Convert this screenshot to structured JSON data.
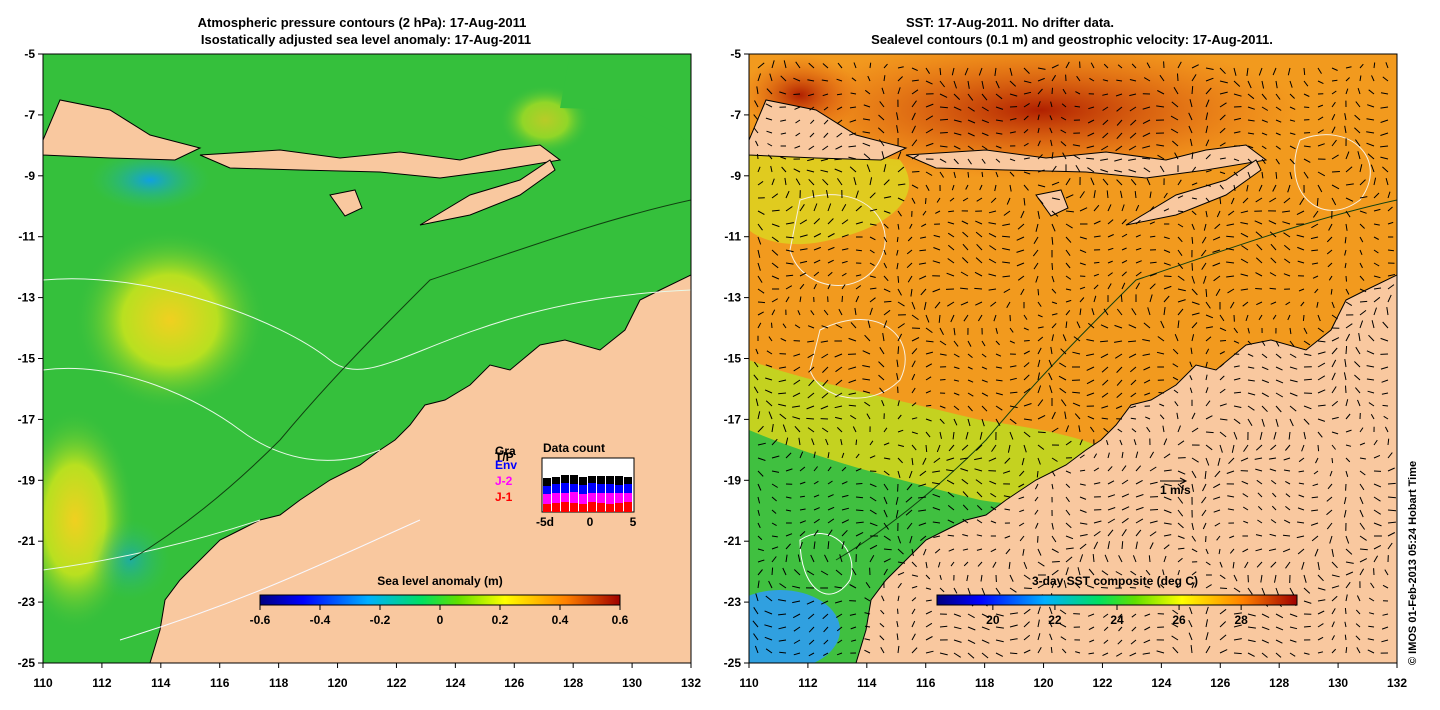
{
  "left_panel": {
    "title_line1": "Atmospheric pressure contours (2 hPa): 17-Aug-2011",
    "title_line2": "Isostatically adjusted sea level anomaly: 17-Aug-2011",
    "x_ticks": [
      "110",
      "112",
      "114",
      "116",
      "118",
      "120",
      "122",
      "124",
      "126",
      "128",
      "130",
      "132"
    ],
    "y_ticks": [
      "-5",
      "-7",
      "-9",
      "-11",
      "-13",
      "-15",
      "-17",
      "-19",
      "-21",
      "-23",
      "-25"
    ],
    "colorbar": {
      "label": "Sea level anomaly (m)",
      "ticks": [
        "-0.6",
        "-0.4",
        "-0.2",
        "0",
        "0.2",
        "0.4",
        "0.6"
      ],
      "range": [
        -0.6,
        0.6
      ]
    },
    "data_count": {
      "title": "Data count",
      "sources": [
        {
          "label": "Gra",
          "color": "#000000"
        },
        {
          "label": "T/P",
          "color": "#000000"
        },
        {
          "label": "Env",
          "color": "#0000ff"
        },
        {
          "label": "J-2",
          "color": "#ff00ff"
        },
        {
          "label": "J-1",
          "color": "#ff0000"
        }
      ],
      "x_ticks": [
        "-5d",
        "0",
        "5"
      ]
    }
  },
  "right_panel": {
    "title_line1": "SST: 17-Aug-2011. No drifter data.",
    "title_line2": "Sealevel contours (0.1 m) and geostrophic velocity: 17-Aug-2011.",
    "x_ticks": [
      "110",
      "112",
      "114",
      "116",
      "118",
      "120",
      "122",
      "124",
      "126",
      "128",
      "130",
      "132"
    ],
    "y_ticks": [
      "-5",
      "-7",
      "-9",
      "-11",
      "-13",
      "-15",
      "-17",
      "-19",
      "-21",
      "-23",
      "-25"
    ],
    "colorbar": {
      "label": "3-day SST composite (deg C)",
      "ticks": [
        "20",
        "22",
        "24",
        "26",
        "28"
      ],
      "range": [
        18.2,
        29.8
      ]
    },
    "velocity_scale_label": "1 m/s"
  },
  "copyright": "© IMOS 01-Feb-2013 05:24 Hobart Time",
  "colors": {
    "land": "#f9c89f",
    "ocean_green": "#2fc23a",
    "sst_orange": "#f39a1e"
  }
}
